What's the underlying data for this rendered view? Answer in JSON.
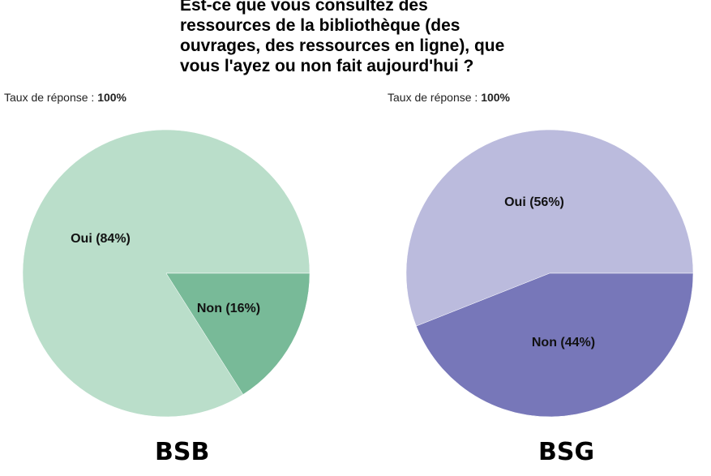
{
  "title_lines": [
    "Est-ce que vous consultez des",
    "ressources de la bibliothèque (des",
    "ouvrages, des ressources en ligne), que",
    "vous l'ayez ou non fait aujourd'hui ?"
  ],
  "chart_data": [
    {
      "type": "pie",
      "name": "BSB",
      "response_rate_label": "Taux de réponse :",
      "response_rate_value": "100%",
      "slices": [
        {
          "label": "Oui (84%)",
          "value": 84,
          "color": "#badeca"
        },
        {
          "label": "Non (16%)",
          "value": 16,
          "color": "#78ba98"
        }
      ]
    },
    {
      "type": "pie",
      "name": "BSG",
      "response_rate_label": "Taux de réponse :",
      "response_rate_value": "100%",
      "slices": [
        {
          "label": "Oui (56%)",
          "value": 56,
          "color": "#bbbbdd"
        },
        {
          "label": "Non (44%)",
          "value": 44,
          "color": "#7777b9"
        }
      ]
    }
  ]
}
